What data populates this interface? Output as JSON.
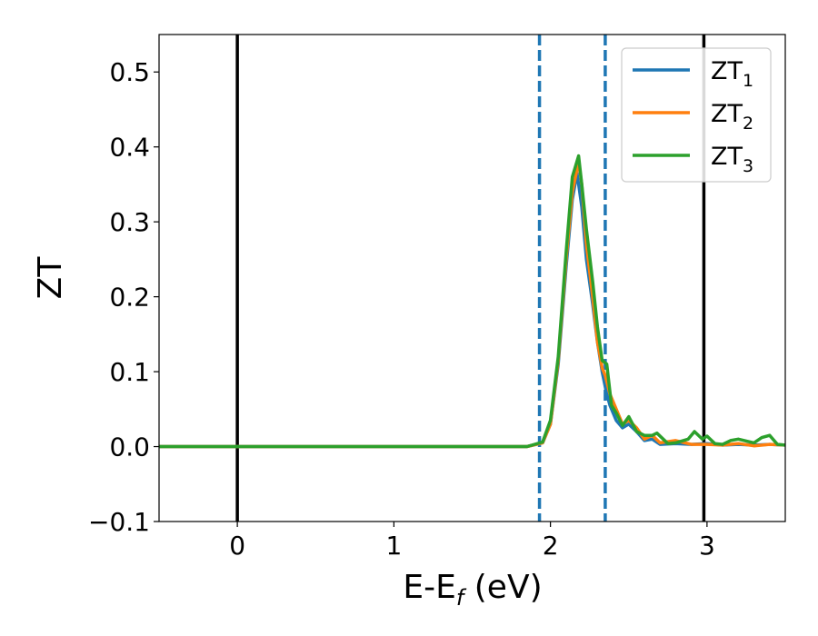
{
  "chart_data": {
    "type": "line",
    "xlabel": "E-E",
    "xlabel_sub": "f",
    "xlabel_unit": "(eV)",
    "ylabel": "ZT",
    "xlim": [
      -0.5,
      3.5
    ],
    "ylim": [
      -0.1,
      0.55
    ],
    "xticks": [
      0,
      1,
      2,
      3
    ],
    "xtick_labels": [
      "0",
      "1",
      "2",
      "3"
    ],
    "yticks": [
      -0.1,
      0.0,
      0.1,
      0.2,
      0.3,
      0.4,
      0.5
    ],
    "ytick_labels": [
      "−0.1",
      "0.0",
      "0.1",
      "0.2",
      "0.3",
      "0.4",
      "0.5"
    ],
    "grid": false,
    "legend_position": "top-right",
    "vlines_solid": [
      0.0,
      2.98
    ],
    "vlines_dashed": [
      1.93,
      2.35
    ],
    "series": [
      {
        "name": "ZT",
        "name_sub": "1",
        "color": "#1f77b4",
        "x": [
          -0.5,
          1.85,
          1.95,
          2.0,
          2.05,
          2.1,
          2.14,
          2.17,
          2.2,
          2.23,
          2.27,
          2.3,
          2.33,
          2.36,
          2.38,
          2.42,
          2.46,
          2.5,
          2.55,
          2.6,
          2.65,
          2.7,
          2.8,
          2.9,
          3.0,
          3.1,
          3.2,
          3.3,
          3.4,
          3.5
        ],
        "y": [
          0.0,
          0.0,
          0.005,
          0.03,
          0.11,
          0.24,
          0.33,
          0.365,
          0.32,
          0.25,
          0.19,
          0.14,
          0.1,
          0.07,
          0.055,
          0.035,
          0.025,
          0.03,
          0.02,
          0.008,
          0.01,
          0.003,
          0.004,
          0.003,
          0.004,
          0.002,
          0.003,
          0.002,
          0.003,
          0.002
        ]
      },
      {
        "name": "ZT",
        "name_sub": "2",
        "color": "#ff7f0e",
        "x": [
          -0.5,
          1.85,
          1.95,
          2.0,
          2.05,
          2.1,
          2.14,
          2.18,
          2.2,
          2.23,
          2.27,
          2.3,
          2.33,
          2.35,
          2.38,
          2.42,
          2.46,
          2.5,
          2.55,
          2.6,
          2.65,
          2.7,
          2.8,
          2.9,
          3.0,
          3.1,
          3.2,
          3.3,
          3.4,
          3.5
        ],
        "y": [
          0.0,
          0.0,
          0.005,
          0.03,
          0.115,
          0.25,
          0.34,
          0.38,
          0.35,
          0.27,
          0.2,
          0.14,
          0.105,
          0.095,
          0.07,
          0.05,
          0.03,
          0.035,
          0.025,
          0.01,
          0.015,
          0.005,
          0.008,
          0.003,
          0.003,
          0.002,
          0.004,
          0.001,
          0.003,
          0.002
        ]
      },
      {
        "name": "ZT",
        "name_sub": "3",
        "color": "#2ca02c",
        "x": [
          -0.5,
          1.85,
          1.95,
          2.0,
          2.05,
          2.1,
          2.14,
          2.18,
          2.2,
          2.23,
          2.27,
          2.3,
          2.33,
          2.36,
          2.39,
          2.42,
          2.46,
          2.5,
          2.55,
          2.6,
          2.65,
          2.68,
          2.75,
          2.8,
          2.88,
          2.92,
          2.97,
          3.0,
          3.05,
          3.1,
          3.15,
          3.2,
          3.3,
          3.35,
          3.4,
          3.45,
          3.5
        ],
        "y": [
          0.0,
          0.0,
          0.006,
          0.035,
          0.12,
          0.26,
          0.36,
          0.388,
          0.35,
          0.29,
          0.22,
          0.16,
          0.115,
          0.11,
          0.055,
          0.045,
          0.028,
          0.04,
          0.02,
          0.015,
          0.015,
          0.018,
          0.004,
          0.005,
          0.01,
          0.02,
          0.01,
          0.014,
          0.004,
          0.003,
          0.008,
          0.01,
          0.005,
          0.012,
          0.015,
          0.003,
          0.002
        ]
      }
    ]
  }
}
